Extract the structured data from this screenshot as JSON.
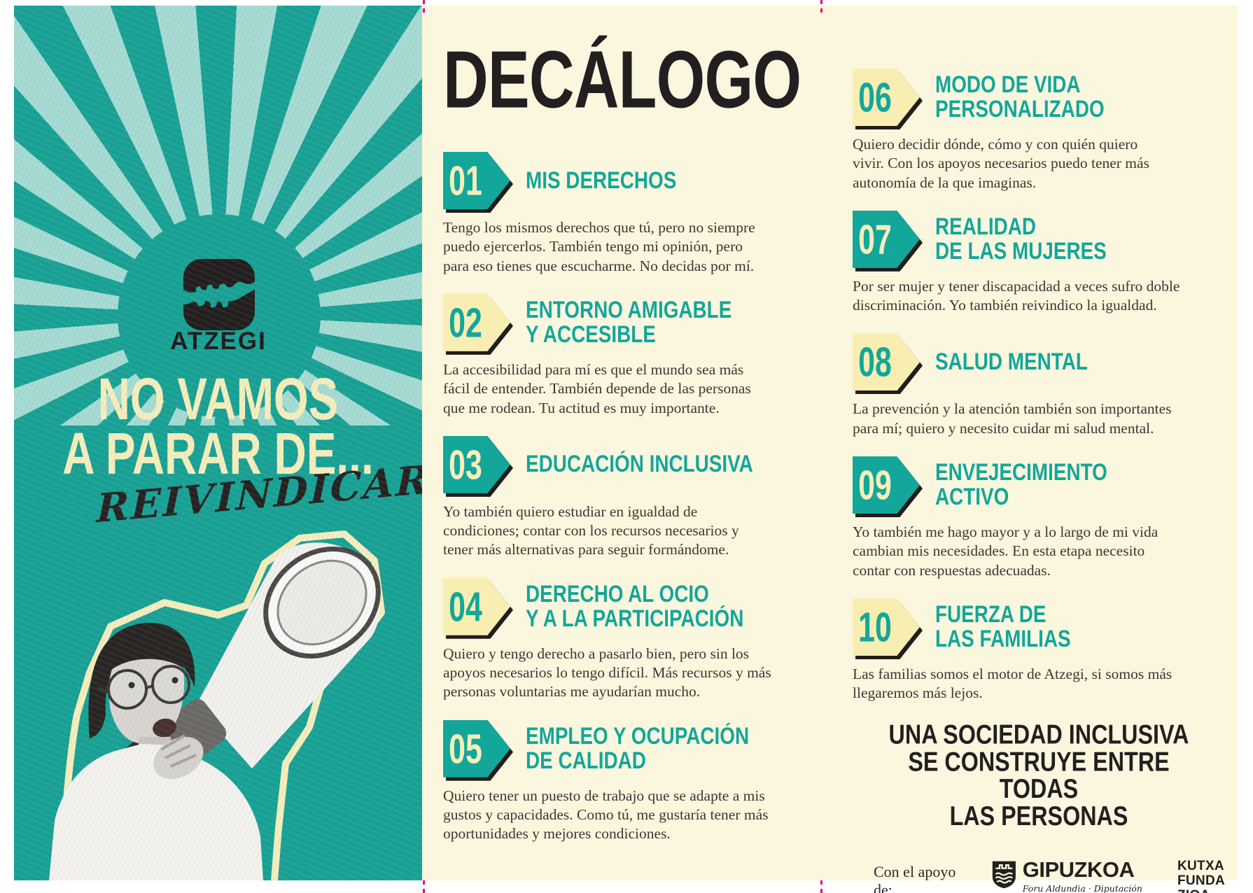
{
  "page": {
    "left_panel": {
      "wordmark": "ATZEGI",
      "slogan_lines": [
        "NO VAMOS",
        "A PARAR DE..."
      ],
      "slogan_script": "REIVINDICAR"
    },
    "decalogo": {
      "title": "DECÁLOGO",
      "items": [
        {
          "num": "01",
          "badge": "teal",
          "heading": [
            "MIS DERECHOS"
          ],
          "body": "Tengo los mismos derechos que tú, pero no siempre\npuedo ejercerlos. También tengo mi opinión, pero\npara eso tienes que escucharme. No decidas por mí."
        },
        {
          "num": "02",
          "badge": "cream",
          "heading": [
            "ENTORNO AMIGABLE",
            "Y ACCESIBLE"
          ],
          "body": "La accesibilidad para mí es que el mundo sea más\nfácil de entender. También depende de las personas\nque me rodean. Tu actitud es muy importante."
        },
        {
          "num": "03",
          "badge": "teal",
          "heading": [
            "EDUCACIÓN INCLUSIVA"
          ],
          "body": "Yo también quiero estudiar en igualdad de\ncondiciones; contar con los recursos necesarios y\ntener más alternativas para seguir formándome."
        },
        {
          "num": "04",
          "badge": "cream",
          "heading": [
            "DERECHO AL OCIO",
            "Y A LA PARTICIPACIÓN"
          ],
          "body": "Quiero y tengo derecho a pasarlo bien, pero sin los\napoyos necesarios lo tengo difícil. Más recursos y más\npersonas voluntarias me ayudarían mucho."
        },
        {
          "num": "05",
          "badge": "teal",
          "heading": [
            "EMPLEO Y OCUPACIÓN",
            "DE CALIDAD"
          ],
          "body": "Quiero tener un puesto de trabajo que se adapte a mis\ngustos y capacidades. Como tú, me gustaría tener más\noportunidades y mejores condiciones."
        },
        {
          "num": "06",
          "badge": "cream",
          "heading": [
            "MODO DE VIDA",
            "PERSONALIZADO"
          ],
          "body": "Quiero decidir dónde, cómo y con quién quiero\nvivir. Con los apoyos necesarios puedo tener más\nautonomía de la que imaginas."
        },
        {
          "num": "07",
          "badge": "teal",
          "heading": [
            "REALIDAD",
            "DE LAS MUJERES"
          ],
          "body": "Por ser mujer y tener discapacidad a veces sufro doble\ndiscriminación. Yo también reivindico la igualdad."
        },
        {
          "num": "08",
          "badge": "cream",
          "heading": [
            "SALUD MENTAL"
          ],
          "body": "La prevención y la atención también son importantes\npara mí; quiero y necesito cuidar mi salud mental."
        },
        {
          "num": "09",
          "badge": "teal",
          "heading": [
            "ENVEJECIMIENTO",
            "ACTIVO"
          ],
          "body": "Yo también me hago mayor y a lo largo de mi vida\ncambian mis necesidades. En esta etapa necesito\ncontar con respuestas adecuadas."
        },
        {
          "num": "10",
          "badge": "cream",
          "heading": [
            "FUERZA DE",
            "LAS FAMILIAS"
          ],
          "body": "Las familias somos el motor de Atzegi, si somos más\nllegaremos más lejos."
        }
      ]
    },
    "closing_lines": [
      "UNA SOCIEDAD INCLUSIVA",
      "SE CONSTRUYE ENTRE TODAS",
      "LAS PERSONAS"
    ],
    "footer": {
      "support_label": "Con el apoyo de:",
      "gipuzkoa_name": "GIPUZKOA",
      "gipuzkoa_subtitle": "Foru Aldundia · Diputación Foral",
      "kutxa_lines": [
        "KUTXA",
        "FUNDA",
        "ZIOA"
      ]
    },
    "colors": {
      "teal_panel": "#18a195",
      "teal_accent": "#12a79a",
      "ray_light": "#a6dbd3",
      "cream_background": "#fbf7de",
      "cream_badge": "#f8eeb2",
      "cream_text": "#f6eebc",
      "ink_black": "#231f20",
      "body_text": "#3c3733",
      "fold_mark_magenta": "#e5007d"
    }
  }
}
